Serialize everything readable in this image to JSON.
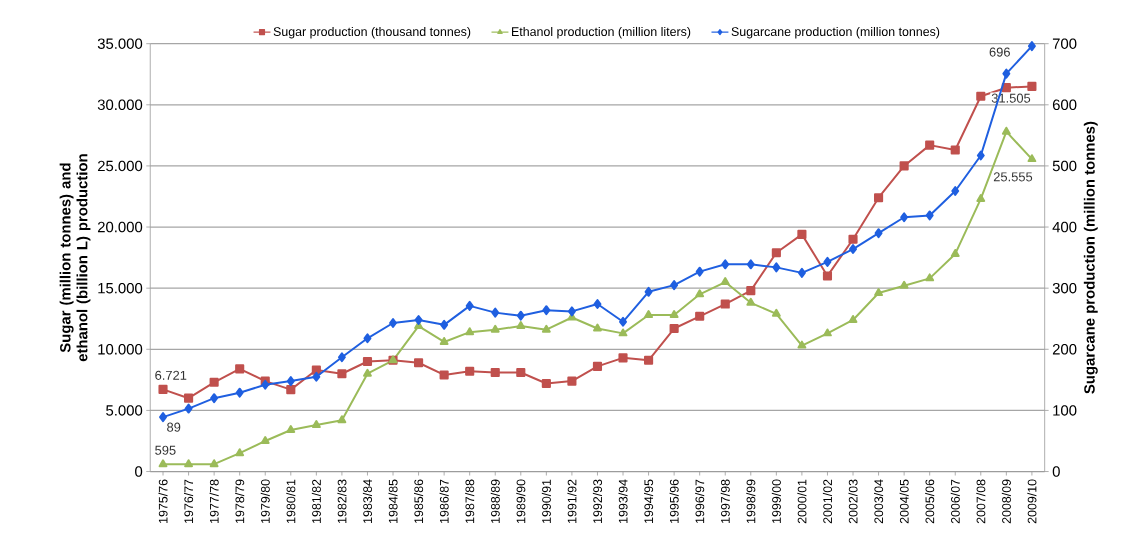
{
  "chart_data": {
    "type": "line",
    "ylabel": "Sugar (million tonnes) and ethanol (billion L) production",
    "y2label": "Sugarcane production (million tonnes)",
    "categories": [
      "1975/76",
      "1976/77",
      "1977/78",
      "1978/79",
      "1979/80",
      "1980/81",
      "1981/82",
      "1982/83",
      "1983/84",
      "1984/85",
      "1985/86",
      "1986/87",
      "1987/88",
      "1988/89",
      "1989/90",
      "1990/91",
      "1991/92",
      "1992/93",
      "1993/94",
      "1994/95",
      "1995/96",
      "1996/97",
      "1997/98",
      "1998/99",
      "1999/00",
      "2000/01",
      "2001/02",
      "2002/03",
      "2003/04",
      "2004/05",
      "2005/06",
      "2006/07",
      "2007/08",
      "2008/09",
      "2009/10"
    ],
    "ylim": [
      0,
      35000
    ],
    "yticks": [
      0,
      {
        "value": 5000,
        "label": "5.000"
      },
      {
        "value": 10000,
        "label": "10.000"
      },
      {
        "value": 15000,
        "label": "15.000"
      },
      {
        "value": 20000,
        "label": "20.000"
      },
      {
        "value": 25000,
        "label": "25.000"
      },
      {
        "value": 30000,
        "label": "30.000"
      },
      {
        "value": 35000,
        "label": "35.000"
      }
    ],
    "y2lim": [
      0,
      700
    ],
    "y2ticks": [
      0,
      100,
      200,
      300,
      400,
      500,
      600,
      700
    ],
    "grid": "y",
    "legend": "top",
    "series": [
      {
        "name": "Sugar production (thousand tonnes)",
        "color": "#c0504d",
        "marker": "square",
        "values": [
          6721,
          6000,
          7300,
          8400,
          7400,
          6700,
          8300,
          8000,
          9000,
          9100,
          8900,
          7900,
          8200,
          8100,
          8100,
          7200,
          7400,
          8600,
          9300,
          9100,
          11700,
          12700,
          13700,
          14800,
          17900,
          19400,
          16000,
          19000,
          22400,
          25000,
          26700,
          26300,
          30700,
          31400,
          31505
        ],
        "value_labels": [
          "6.721",
          null,
          null,
          null,
          null,
          null,
          null,
          null,
          null,
          null,
          null,
          null,
          null,
          null,
          null,
          null,
          null,
          null,
          null,
          null,
          null,
          null,
          null,
          null,
          null,
          null,
          null,
          null,
          null,
          null,
          null,
          null,
          null,
          null,
          "31.505"
        ]
      },
      {
        "name": "Ethanol production (million liters)",
        "color": "#9bbb59",
        "marker": "triangle",
        "values": [
          595,
          600,
          600,
          1500,
          2500,
          3400,
          3800,
          4200,
          8000,
          9100,
          11900,
          10600,
          11400,
          11600,
          11900,
          11600,
          12600,
          11700,
          11300,
          12800,
          12800,
          14500,
          15500,
          13800,
          12900,
          10300,
          11300,
          12400,
          14600,
          15200,
          15800,
          17800,
          22300,
          27800,
          25555
        ],
        "value_labels": [
          "595",
          null,
          null,
          null,
          null,
          null,
          null,
          null,
          null,
          null,
          null,
          null,
          null,
          null,
          null,
          null,
          null,
          null,
          null,
          null,
          null,
          null,
          null,
          null,
          null,
          null,
          null,
          null,
          null,
          null,
          null,
          null,
          null,
          null,
          "25.555"
        ]
      },
      {
        "name": "Sugarcane production (million tonnes)",
        "color": "#1f5fe0",
        "marker": "diamond",
        "axis": "y2",
        "values": [
          89,
          103,
          120,
          129,
          142,
          148,
          155,
          187,
          218,
          243,
          248,
          240,
          271,
          260,
          255,
          264,
          262,
          274,
          245,
          294,
          305,
          327,
          339,
          339,
          334,
          325,
          343,
          364,
          390,
          416,
          419,
          459,
          517,
          651,
          696
        ],
        "value_labels": [
          "89",
          null,
          null,
          null,
          null,
          null,
          null,
          null,
          null,
          null,
          null,
          null,
          null,
          null,
          null,
          null,
          null,
          null,
          null,
          null,
          null,
          null,
          null,
          null,
          null,
          null,
          null,
          null,
          null,
          null,
          null,
          null,
          null,
          null,
          "696"
        ]
      }
    ]
  }
}
